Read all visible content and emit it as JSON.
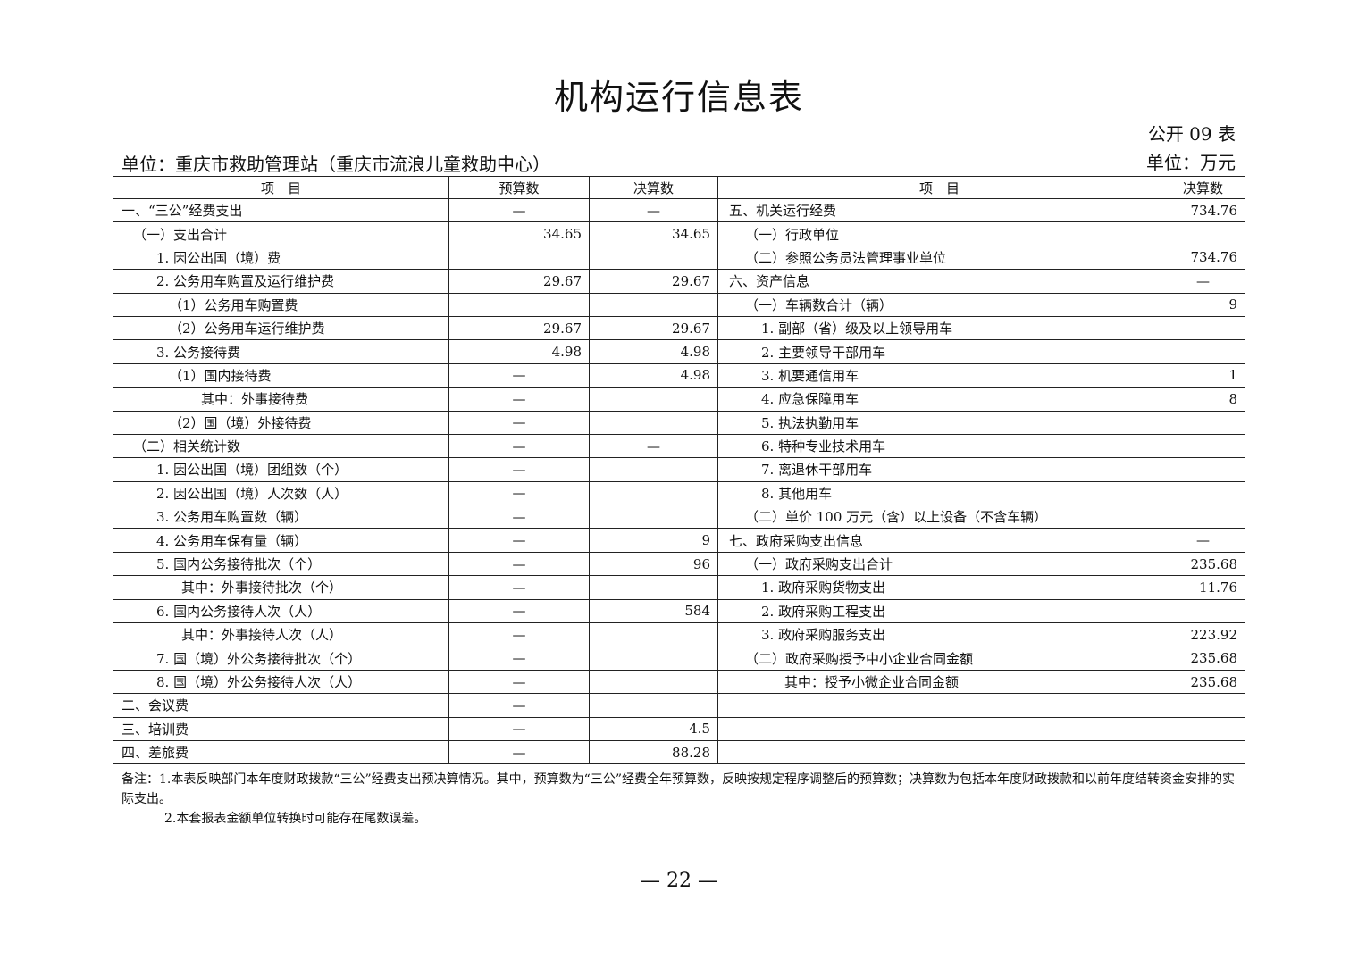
{
  "title": "机构运行信息表",
  "table_code": "公开 09 表",
  "unit_org": "单位：重庆市救助管理站（重庆市流浪儿童救助中心）",
  "unit_currency": "单位：万元",
  "headers": {
    "item_left": "项　目",
    "budget": "预算数",
    "final_left": "决算数",
    "item_right": "项　目",
    "final_right": "决算数"
  },
  "rows": [
    {
      "left": {
        "label": "一、“三公”经费支出",
        "level": 0,
        "budget": "—",
        "final": "—"
      },
      "right": {
        "label": "五、机关运行经费",
        "level": 0,
        "final": "734.76"
      }
    },
    {
      "left": {
        "label": "（一）支出合计",
        "level": 1,
        "budget": "34.65",
        "final": "34.65"
      },
      "right": {
        "label": "（一）行政单位",
        "level": 1,
        "final": ""
      }
    },
    {
      "left": {
        "label": "1.  因公出国（境）费",
        "level": 2,
        "budget": "",
        "final": ""
      },
      "right": {
        "label": "（二）参照公务员法管理事业单位",
        "level": 1,
        "final": "734.76"
      }
    },
    {
      "left": {
        "label": "2.  公务用车购置及运行维护费",
        "level": 2,
        "budget": "29.67",
        "final": "29.67"
      },
      "right": {
        "label": "六、资产信息",
        "level": 0,
        "final": "—"
      }
    },
    {
      "left": {
        "label": "（1）公务用车购置费",
        "level": 3,
        "budget": "",
        "final": ""
      },
      "right": {
        "label": "（一）车辆数合计（辆）",
        "level": 1,
        "final": "9"
      }
    },
    {
      "left": {
        "label": "（2）公务用车运行维护费",
        "level": 3,
        "budget": "29.67",
        "final": "29.67"
      },
      "right": {
        "label": "1.  副部（省）级及以上领导用车",
        "level": 2,
        "final": ""
      }
    },
    {
      "left": {
        "label": "3.  公务接待费",
        "level": 2,
        "budget": "4.98",
        "final": "4.98"
      },
      "right": {
        "label": "2.  主要领导干部用车",
        "level": 2,
        "final": ""
      }
    },
    {
      "left": {
        "label": "（1）国内接待费",
        "level": 3,
        "budget": "—",
        "final": "4.98"
      },
      "right": {
        "label": "3.  机要通信用车",
        "level": 2,
        "final": "1"
      }
    },
    {
      "left": {
        "label": "其中：外事接待费",
        "level": 5,
        "budget": "—",
        "final": ""
      },
      "right": {
        "label": "4.  应急保障用车",
        "level": 2,
        "final": "8"
      }
    },
    {
      "left": {
        "label": "（2）国（境）外接待费",
        "level": 3,
        "budget": "—",
        "final": ""
      },
      "right": {
        "label": "5.  执法执勤用车",
        "level": 2,
        "final": ""
      }
    },
    {
      "left": {
        "label": "（二）相关统计数",
        "level": 1,
        "budget": "—",
        "final": "—"
      },
      "right": {
        "label": "6.  特种专业技术用车",
        "level": 2,
        "final": ""
      }
    },
    {
      "left": {
        "label": "1.  因公出国（境）团组数（个）",
        "level": 2,
        "budget": "—",
        "final": ""
      },
      "right": {
        "label": "7.  离退休干部用车",
        "level": 2,
        "final": ""
      }
    },
    {
      "left": {
        "label": "2.  因公出国（境）人次数（人）",
        "level": 2,
        "budget": "—",
        "final": ""
      },
      "right": {
        "label": "8.  其他用车",
        "level": 2,
        "final": ""
      }
    },
    {
      "left": {
        "label": "3.  公务用车购置数（辆）",
        "level": 2,
        "budget": "—",
        "final": ""
      },
      "right": {
        "label": "（二）单价 100 万元（含）以上设备（不含车辆）",
        "level": 1,
        "final": ""
      }
    },
    {
      "left": {
        "label": "4.  公务用车保有量（辆）",
        "level": 2,
        "budget": "—",
        "final": "9"
      },
      "right": {
        "label": "七、政府采购支出信息",
        "level": 0,
        "final": "—"
      }
    },
    {
      "left": {
        "label": "5.  国内公务接待批次（个）",
        "level": 2,
        "budget": "—",
        "final": "96"
      },
      "right": {
        "label": "（一）政府采购支出合计",
        "level": 1,
        "final": "235.68"
      }
    },
    {
      "left": {
        "label": "其中：外事接待批次（个）",
        "level": 4,
        "budget": "—",
        "final": ""
      },
      "right": {
        "label": "1.  政府采购货物支出",
        "level": 2,
        "final": "11.76"
      }
    },
    {
      "left": {
        "label": "6.  国内公务接待人次（人）",
        "level": 2,
        "budget": "—",
        "final": "584"
      },
      "right": {
        "label": "2.  政府采购工程支出",
        "level": 2,
        "final": ""
      }
    },
    {
      "left": {
        "label": "其中：外事接待人次（人）",
        "level": 4,
        "budget": "—",
        "final": ""
      },
      "right": {
        "label": "3.  政府采购服务支出",
        "level": 2,
        "final": "223.92"
      }
    },
    {
      "left": {
        "label": "7.  国（境）外公务接待批次（个）",
        "level": 2,
        "budget": "—",
        "final": ""
      },
      "right": {
        "label": "（二）政府采购授予中小企业合同金额",
        "level": 1,
        "final": "235.68"
      }
    },
    {
      "left": {
        "label": "8.  国（境）外公务接待人次（人）",
        "level": 2,
        "budget": "—",
        "final": ""
      },
      "right": {
        "label": "其中：授予小微企业合同金额",
        "level": 3,
        "final": "235.68"
      }
    },
    {
      "left": {
        "label": "二、会议费",
        "level": 0,
        "budget": "—",
        "final": ""
      },
      "right": {
        "label": "",
        "level": 0,
        "final": ""
      }
    },
    {
      "left": {
        "label": "三、培训费",
        "level": 0,
        "budget": "—",
        "final": "4.5"
      },
      "right": {
        "label": "",
        "level": 0,
        "final": ""
      }
    },
    {
      "left": {
        "label": "四、差旅费",
        "level": 0,
        "budget": "—",
        "final": "88.28"
      },
      "right": {
        "label": "",
        "level": 0,
        "final": ""
      }
    }
  ],
  "notes": [
    "备注：1.本表反映部门本年度财政拨款“三公”经费支出预决算情况。其中，预算数为“三公”经费全年预算数，反映按规定程序调整后的预算数；决算数为包括本年度财政拨款和以前年度结转资金安排的实际支出。",
    "2.本套报表金额单位转换时可能存在尾数误差。"
  ],
  "page_number": "— 22 —"
}
